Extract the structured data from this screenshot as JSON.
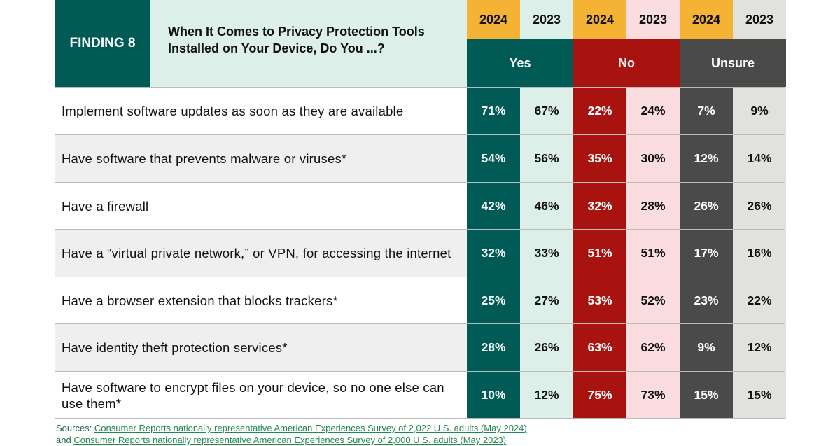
{
  "finding_label": "FINDING 8",
  "question": "When It Comes to Privacy Protection Tools Installed on Your Device, Do You ...?",
  "years": [
    "2024",
    "2023",
    "2024",
    "2023",
    "2024",
    "2023"
  ],
  "groups": [
    "Yes",
    "No",
    "Unsure"
  ],
  "colors": {
    "yes_2024": "#005a55",
    "yes_2023": "#dcefe9",
    "no_2024": "#a8130f",
    "no_2023": "#fbdde0",
    "unsure_2024": "#4a4a4a",
    "unsure_2023": "#e1e1dd",
    "year_2024": "#f5b335"
  },
  "rows": [
    {
      "label": "Implement software updates as soon as they are available",
      "values": [
        "71%",
        "67%",
        "22%",
        "24%",
        "7%",
        "9%"
      ]
    },
    {
      "label": "Have software that prevents malware or viruses*",
      "values": [
        "54%",
        "56%",
        "35%",
        "30%",
        "12%",
        "14%"
      ]
    },
    {
      "label": "Have a firewall",
      "values": [
        "42%",
        "46%",
        "32%",
        "28%",
        "26%",
        "26%"
      ]
    },
    {
      "label": "Have a “virtual private network,” or VPN, for accessing the internet",
      "values": [
        "32%",
        "33%",
        "51%",
        "51%",
        "17%",
        "16%"
      ]
    },
    {
      "label": "Have a browser extension that blocks trackers*",
      "values": [
        "25%",
        "27%",
        "53%",
        "52%",
        "23%",
        "22%"
      ]
    },
    {
      "label": "Have identity theft protection services*",
      "values": [
        "28%",
        "26%",
        "63%",
        "62%",
        "9%",
        "12%"
      ]
    },
    {
      "label": "Have software to encrypt files on your device, so no one else can use them*",
      "values": [
        "10%",
        "12%",
        "75%",
        "73%",
        "15%",
        "15%"
      ]
    }
  ],
  "footer": {
    "prefix": "Sources: ",
    "link1": "Consumer Reports nationally representative American Experiences Survey of 2,022 U.S. adults (May 2024)",
    "line2_prefix": "and ",
    "link2": "Consumer Reports nationally representative American Experiences Survey of 2,000 U.S. adults (May 2023)"
  }
}
